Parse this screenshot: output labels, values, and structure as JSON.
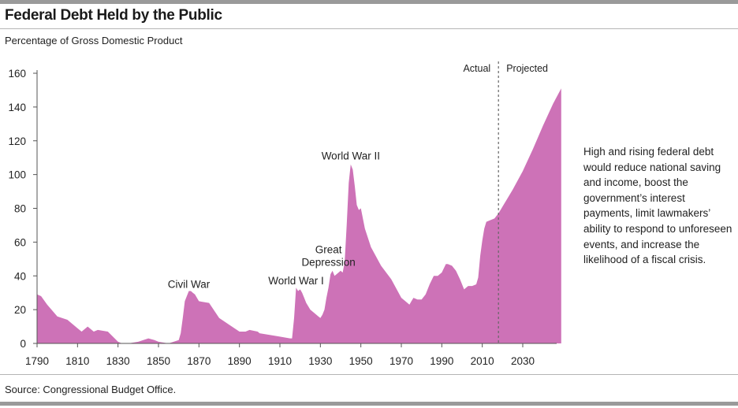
{
  "title": "Federal Debt Held by the Public",
  "subtitle": "Percentage of Gross Domestic Product",
  "source": "Source: Congressional Budget Office.",
  "note": "High and rising federal debt would reduce national saving and income, boost the government’s interest payments, limit lawmakers’ ability to respond to unforeseen events, and increase the likelihood of a fiscal crisis.",
  "colors": {
    "area": "#cd72b7",
    "divider": "#666666"
  },
  "chart_data": {
    "type": "area",
    "xlim": [
      1790,
      2049
    ],
    "ylim": [
      0,
      160
    ],
    "x_ticks": [
      1790,
      1810,
      1830,
      1850,
      1870,
      1890,
      1910,
      1930,
      1950,
      1970,
      1990,
      2010,
      2030
    ],
    "y_ticks": [
      0,
      20,
      40,
      60,
      80,
      100,
      120,
      140,
      160
    ],
    "grid": false,
    "divider": {
      "year": 2018,
      "left_label": "Actual",
      "right_label": "Projected"
    },
    "annotations": [
      {
        "lines": [
          "Civil War"
        ],
        "x": 1865,
        "y": 33
      },
      {
        "lines": [
          "World War I"
        ],
        "x": 1918,
        "y": 35
      },
      {
        "lines": [
          "Great",
          "Depression"
        ],
        "x": 1934,
        "y": 46
      },
      {
        "lines": [
          "World War II"
        ],
        "x": 1945,
        "y": 109
      }
    ],
    "x": [
      1790,
      1792,
      1795,
      1800,
      1805,
      1810,
      1812,
      1815,
      1818,
      1820,
      1825,
      1830,
      1832,
      1835,
      1840,
      1845,
      1848,
      1850,
      1855,
      1860,
      1861,
      1862,
      1863,
      1864,
      1865,
      1866,
      1867,
      1868,
      1870,
      1875,
      1880,
      1885,
      1890,
      1893,
      1895,
      1899,
      1900,
      1905,
      1910,
      1915,
      1916,
      1917,
      1918,
      1919,
      1920,
      1921,
      1922,
      1923,
      1924,
      1925,
      1927,
      1929,
      1930,
      1931,
      1932,
      1933,
      1934,
      1935,
      1936,
      1937,
      1938,
      1939,
      1940,
      1941,
      1942,
      1943,
      1944,
      1945,
      1946,
      1947,
      1948,
      1949,
      1950,
      1952,
      1955,
      1960,
      1965,
      1970,
      1974,
      1975,
      1976,
      1978,
      1980,
      1982,
      1984,
      1986,
      1988,
      1990,
      1992,
      1993,
      1995,
      1997,
      1999,
      2001,
      2003,
      2005,
      2007,
      2008,
      2009,
      2010,
      2011,
      2012,
      2014,
      2016,
      2018,
      2020,
      2025,
      2030,
      2035,
      2040,
      2045,
      2049
    ],
    "values": [
      29,
      28,
      23,
      16,
      14,
      9,
      7,
      10,
      7,
      8,
      7,
      1,
      0,
      0,
      1,
      3,
      2,
      1,
      0,
      2,
      6,
      15,
      25,
      28,
      31,
      31,
      30,
      29,
      25,
      24,
      15,
      11,
      7,
      7,
      8,
      7,
      6,
      5,
      4,
      3,
      3,
      15,
      33,
      31,
      32,
      30,
      27,
      24,
      22,
      20,
      18,
      16,
      15,
      17,
      20,
      27,
      33,
      41,
      43,
      40,
      41,
      42,
      43,
      42,
      48,
      70,
      95,
      106,
      103,
      93,
      82,
      79,
      80,
      68,
      57,
      46,
      38,
      27,
      23,
      25,
      27,
      26,
      26,
      29,
      35,
      40,
      40,
      42,
      47,
      47,
      46,
      43,
      38,
      32,
      34,
      34,
      35,
      39,
      52,
      61,
      68,
      72,
      73,
      74,
      77,
      81,
      91,
      102,
      115,
      129,
      142,
      151
    ]
  }
}
